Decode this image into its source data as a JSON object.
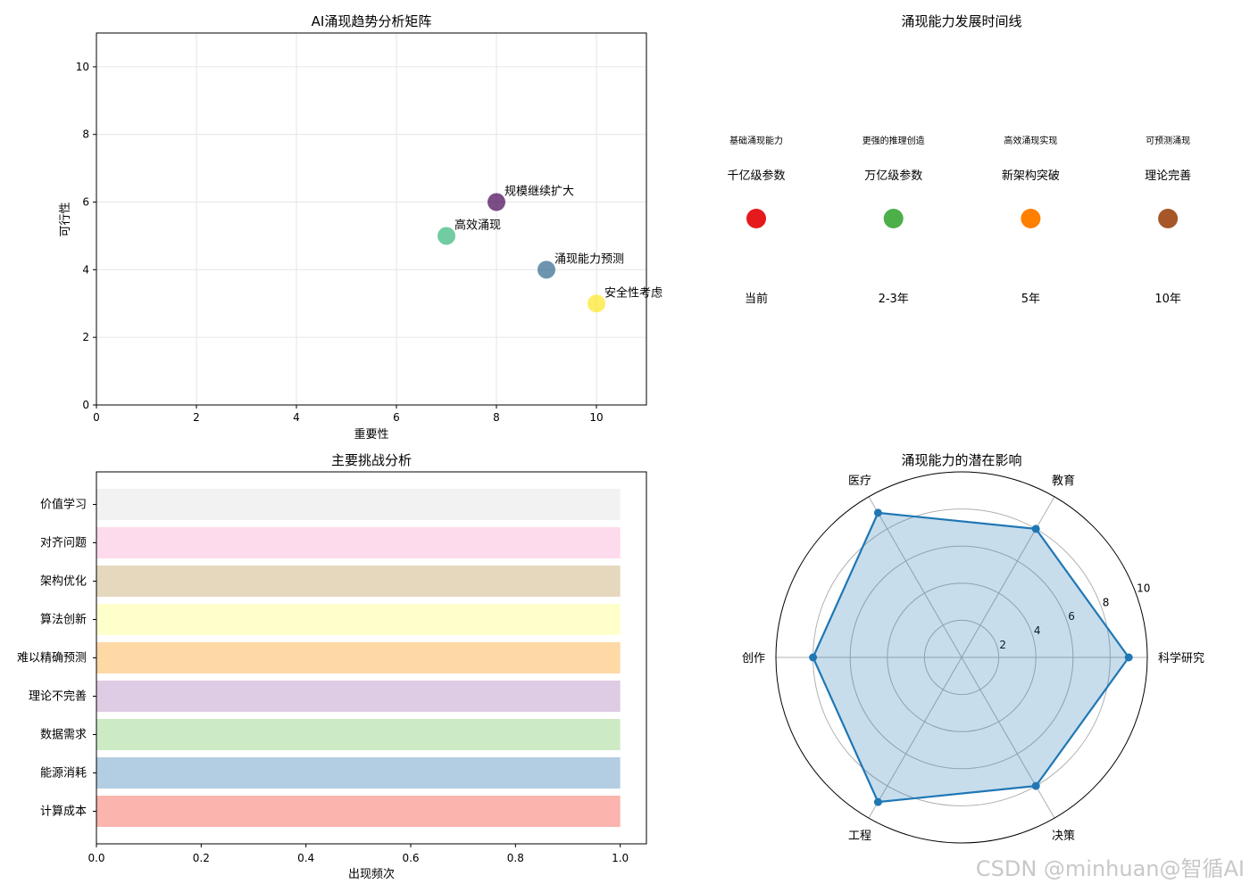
{
  "watermark": "CSDN @minhuan@智循AI",
  "chart_data": [
    {
      "type": "scatter",
      "title": "AI涌现趋势分析矩阵",
      "xlabel": "重要性",
      "ylabel": "可行性",
      "xlim": [
        0,
        11
      ],
      "ylim": [
        0,
        11
      ],
      "xticks": [
        0,
        2,
        4,
        6,
        8,
        10
      ],
      "yticks": [
        0,
        2,
        4,
        6,
        8,
        10
      ],
      "grid": true,
      "points": [
        {
          "label": "规模继续扩大",
          "x": 8,
          "y": 6,
          "color": "#440154"
        },
        {
          "label": "高效涌现",
          "x": 7,
          "y": 5,
          "color": "#35b779"
        },
        {
          "label": "涌现能力预测",
          "x": 9,
          "y": 4,
          "color": "#31688e"
        },
        {
          "label": "安全性考虑",
          "x": 10,
          "y": 3,
          "color": "#fde725"
        }
      ]
    },
    {
      "type": "timeline",
      "title": "涌现能力发展时间线",
      "events": [
        {
          "time": "当前",
          "milestone": "千亿级参数",
          "capability": "基础涌现能力",
          "color": "#e41a1c"
        },
        {
          "time": "2-3年",
          "milestone": "万亿级参数",
          "capability": "更强的推理创造",
          "color": "#4daf4a"
        },
        {
          "time": "5年",
          "milestone": "新架构突破",
          "capability": "高效涌现实现",
          "color": "#ff7f00"
        },
        {
          "time": "10年",
          "milestone": "理论完善",
          "capability": "可预测涌现",
          "color": "#a65628"
        }
      ]
    },
    {
      "type": "bar",
      "orientation": "horizontal",
      "title": "主要挑战分析",
      "xlabel": "出现频次",
      "xlim": [
        0,
        1.05
      ],
      "xticks": [
        "0.0",
        "0.2",
        "0.4",
        "0.6",
        "0.8",
        "1.0"
      ],
      "categories": [
        "计算成本",
        "能源消耗",
        "数据需求",
        "理论不完善",
        "难以精确预测",
        "算法创新",
        "架构优化",
        "对齐问题",
        "价值学习"
      ],
      "values": [
        1,
        1,
        1,
        1,
        1,
        1,
        1,
        1,
        1
      ],
      "colors": [
        "#fbb4ae",
        "#b3cde3",
        "#ccebc5",
        "#decbe4",
        "#fed9a6",
        "#ffffcc",
        "#e5d8bd",
        "#fddaec",
        "#f2f2f2"
      ]
    },
    {
      "type": "radar",
      "title": "涌现能力的潜在影响",
      "categories": [
        "科学研究",
        "教育",
        "医疗",
        "创作",
        "工程",
        "决策"
      ],
      "values": [
        9,
        8,
        9,
        8,
        9,
        8
      ],
      "rmax": 10,
      "rticks": [
        2,
        4,
        6,
        8,
        10
      ],
      "color": "#1f77b4"
    }
  ]
}
